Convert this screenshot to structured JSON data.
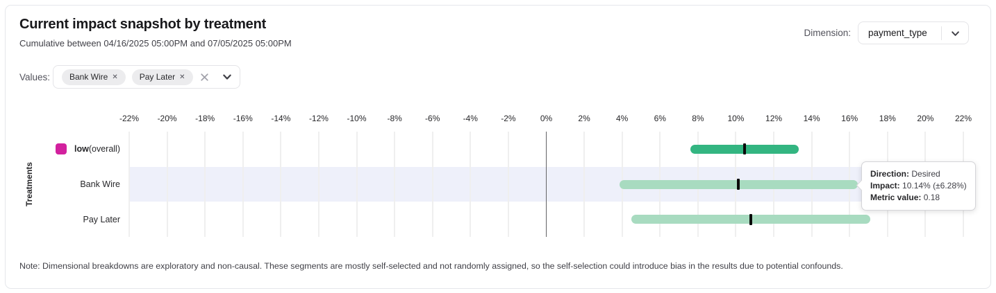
{
  "header": {
    "title": "Current impact snapshot by treatment",
    "subtitle": "Cumulative between 04/16/2025 05:00PM and 07/05/2025 05:00PM",
    "dimension_label": "Dimension:",
    "dimension_value": "payment_type"
  },
  "filters": {
    "values_label": "Values:",
    "chips": [
      {
        "label": "Bank Wire",
        "remove_glyph": "✕"
      },
      {
        "label": "Pay Later",
        "remove_glyph": "✕"
      }
    ]
  },
  "chart_data": {
    "type": "range_bar",
    "orientation": "horizontal",
    "ylabel": "Treatments",
    "x_unit": "percent",
    "xlim": [
      -22,
      22
    ],
    "x_ticks": [
      -22,
      -20,
      -18,
      -16,
      -14,
      -12,
      -10,
      -8,
      -6,
      -4,
      -2,
      0,
      2,
      4,
      6,
      8,
      10,
      12,
      14,
      16,
      18,
      20,
      22
    ],
    "grid": "vertical",
    "zero_line": true,
    "highlight_band_color": "#eef0fa",
    "rows": [
      {
        "label_bold": "low",
        "label_suffix": " (overall)",
        "legend_color": "#d2219e",
        "impact_pct": 10.46,
        "moe_pct": 2.85,
        "range_pct": [
          7.6,
          13.3
        ],
        "bar_color": "#33b581",
        "highlighted": false
      },
      {
        "label": "Bank Wire",
        "impact_pct": 10.14,
        "moe_pct": 6.28,
        "range_pct": [
          3.86,
          16.42
        ],
        "bar_color": "#a8dbc0",
        "highlighted": true
      },
      {
        "label": "Pay Later",
        "impact_pct": 10.8,
        "moe_pct": 6.3,
        "range_pct": [
          4.5,
          17.1
        ],
        "bar_color": "#a8dbc0",
        "highlighted": false
      }
    ],
    "tooltip": {
      "target_row": "Bank Wire",
      "direction_label": "Direction:",
      "direction_value": "Desired",
      "impact_label": "Impact:",
      "impact_value": "10.14% (±6.28%)",
      "metric_label": "Metric value:",
      "metric_value": "0.18"
    }
  },
  "note": "Note: Dimensional breakdowns are exploratory and non-causal. These segments are mostly self-selected and not randomly assigned, so the self-selection could introduce bias in the results due to potential confounds."
}
